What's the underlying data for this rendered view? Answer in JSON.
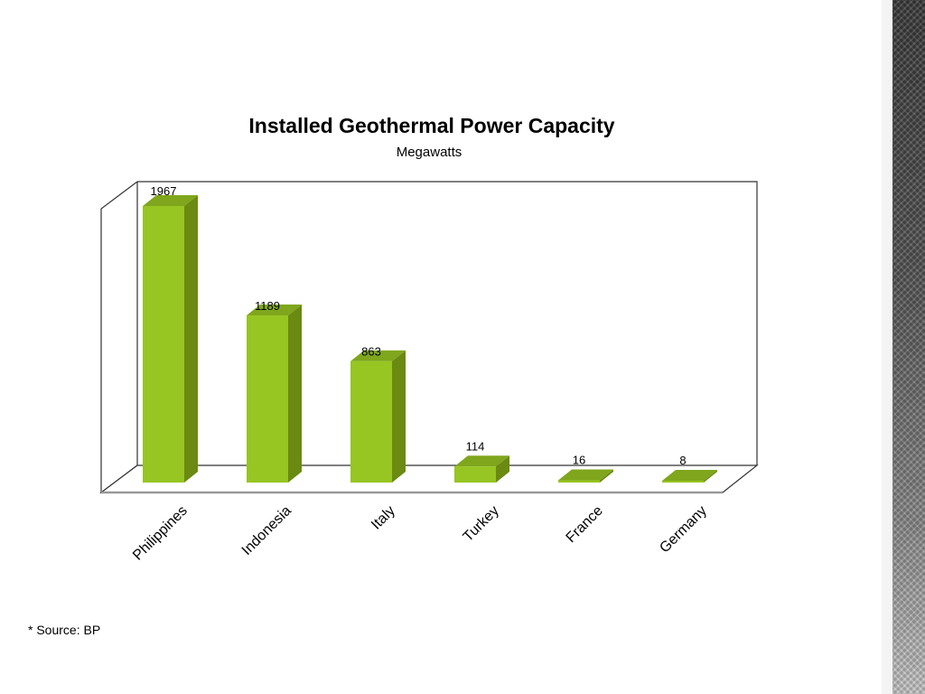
{
  "slide": {
    "source_note": "* Source: BP"
  },
  "chart_data": {
    "type": "bar",
    "title": "Installed Geothermal Power Capacity",
    "subtitle": "Megawatts",
    "categories": [
      "Philippines",
      "Indonesia",
      "Italy",
      "Turkey",
      "France",
      "Germany"
    ],
    "values": [
      1967,
      1189,
      863,
      114,
      16,
      8
    ],
    "data_labels": [
      "1967",
      "1189",
      "863",
      "114",
      "16",
      "8"
    ],
    "ylim": [
      0,
      2000
    ],
    "grid": false,
    "legend": "none",
    "style": "3d-column",
    "colors": {
      "bar_front": "#97C522",
      "bar_side": "#6A8A12",
      "bar_top": "#7FA61C",
      "frame": "#333333",
      "floor": "#ffffff"
    }
  }
}
